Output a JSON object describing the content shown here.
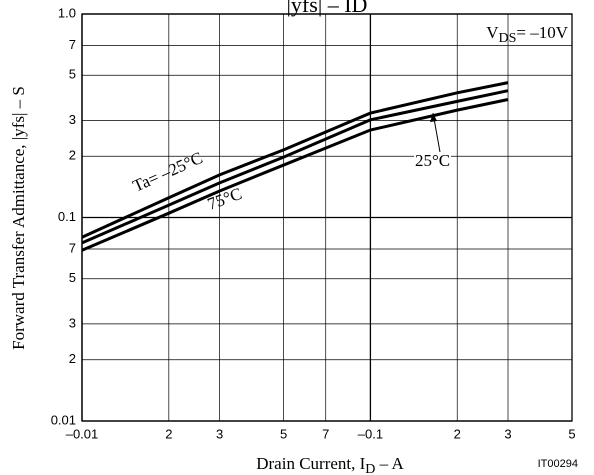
{
  "chart_data": {
    "type": "line",
    "title": "|yfs| – ID",
    "x_label": {
      "text": "Drain Current, I",
      "subscript": "D",
      "suffix": " – A"
    },
    "y_label": "Forward Transfer Admittance, |yfs|  – S",
    "annotations": {
      "condition": {
        "text": "V",
        "subscript": "DS",
        "suffix": "= –10V"
      },
      "code": "IT00294"
    },
    "x_scale": "log",
    "y_scale": "log",
    "grid": true,
    "xlim": [
      0.01,
      0.5
    ],
    "ylim": [
      0.01,
      1.0
    ],
    "xticks": [
      {
        "value": 0.01,
        "label": "–0.01"
      },
      {
        "value": 0.02,
        "label": "2"
      },
      {
        "value": 0.03,
        "label": "3"
      },
      {
        "value": 0.05,
        "label": "5"
      },
      {
        "value": 0.07,
        "label": "7"
      },
      {
        "value": 0.1,
        "label": "–0.1"
      },
      {
        "value": 0.2,
        "label": "2"
      },
      {
        "value": 0.3,
        "label": "3"
      },
      {
        "value": 0.5,
        "label": "5"
      }
    ],
    "yticks": [
      0.01,
      {
        "value": 0.02,
        "label": "2"
      },
      {
        "value": 0.03,
        "label": "3"
      },
      {
        "value": 0.05,
        "label": "5"
      },
      {
        "value": 0.07,
        "label": "7"
      },
      0.1,
      {
        "value": 0.2,
        "label": "2"
      },
      {
        "value": 0.3,
        "label": "3"
      },
      {
        "value": 0.5,
        "label": "5"
      },
      {
        "value": 0.7,
        "label": "7"
      },
      {
        "value": 1.0,
        "label": "1.0"
      }
    ],
    "x": [
      0.01,
      0.02,
      0.03,
      0.05,
      0.1,
      0.2,
      0.3
    ],
    "series": [
      {
        "name": "Ta= –25°C",
        "color": "#000000",
        "values": [
          0.08,
          0.125,
          0.162,
          0.215,
          0.326,
          0.41,
          0.46
        ]
      },
      {
        "name": "25°C",
        "color": "#000000",
        "values": [
          0.075,
          0.115,
          0.148,
          0.198,
          0.302,
          0.372,
          0.42
        ]
      },
      {
        "name": "75°C",
        "color": "#000000",
        "values": [
          0.069,
          0.105,
          0.135,
          0.181,
          0.269,
          0.337,
          0.38
        ]
      }
    ]
  }
}
